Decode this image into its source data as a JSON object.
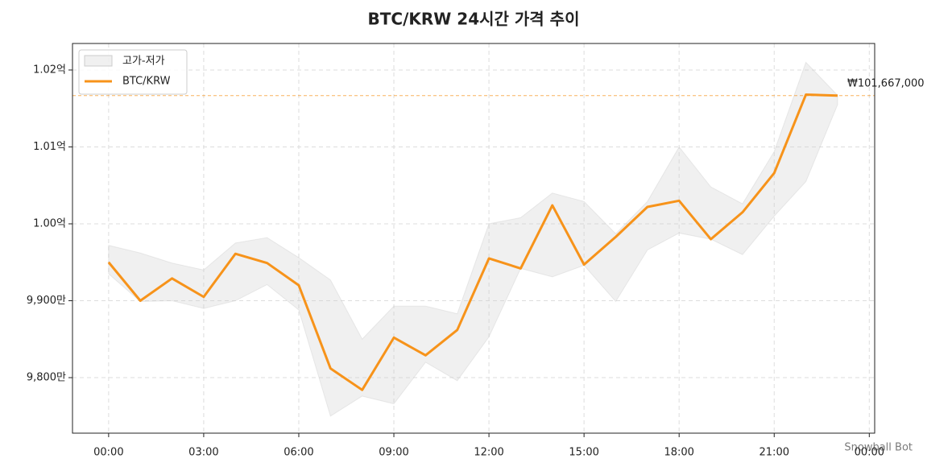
{
  "chart_data": {
    "type": "line",
    "title": "BTC/KRW 24시간 가격 추이",
    "x": [
      0,
      1,
      2,
      3,
      4,
      5,
      6,
      7,
      8,
      9,
      10,
      11,
      12,
      13,
      14,
      15,
      16,
      17,
      18,
      19,
      20,
      21,
      22,
      23
    ],
    "xlim": [
      -1.14,
      24.17
    ],
    "xticks": [
      {
        "value": 0,
        "label": "00:00"
      },
      {
        "value": 3,
        "label": "03:00"
      },
      {
        "value": 6,
        "label": "06:00"
      },
      {
        "value": 9,
        "label": "09:00"
      },
      {
        "value": 12,
        "label": "12:00"
      },
      {
        "value": 15,
        "label": "15:00"
      },
      {
        "value": 18,
        "label": "18:00"
      },
      {
        "value": 21,
        "label": "21:00"
      },
      {
        "value": 24,
        "label": "00:00"
      }
    ],
    "ylim": [
      97278000,
      102345000
    ],
    "yticks": [
      {
        "value": 98000000,
        "label": "9,800만"
      },
      {
        "value": 99000000,
        "label": "9,900만"
      },
      {
        "value": 100000000,
        "label": "1.00억"
      },
      {
        "value": 101000000,
        "label": "1.01억"
      },
      {
        "value": 102000000,
        "label": "1.02억"
      }
    ],
    "grid": true,
    "legend": "upper-left",
    "band": {
      "name": "고가-저가",
      "color": "#cccccc",
      "high": [
        99720000,
        99620000,
        99490000,
        99400000,
        99750000,
        99820000,
        99560000,
        99270000,
        98500000,
        98930000,
        98930000,
        98830000,
        100000000,
        100080000,
        100400000,
        100290000,
        99870000,
        100290000,
        101000000,
        100480000,
        100260000,
        100940000,
        102100000,
        101670000
      ],
      "low": [
        99350000,
        98990000,
        99000000,
        98900000,
        99000000,
        99210000,
        98880000,
        97500000,
        97760000,
        97660000,
        98200000,
        97960000,
        98530000,
        99420000,
        99310000,
        99460000,
        98990000,
        99660000,
        99880000,
        99800000,
        99600000,
        100100000,
        100550000,
        101550000
      ]
    },
    "series": [
      {
        "name": "BTC/KRW",
        "color": "#f7931a",
        "values": [
          99500000,
          99000000,
          99290000,
          99050000,
          99610000,
          99490000,
          99200000,
          98120000,
          97840000,
          98520000,
          98290000,
          98620000,
          99550000,
          99420000,
          100240000,
          99470000,
          99830000,
          100220000,
          100300000,
          99800000,
          100150000,
          100660000,
          101680000,
          101667000
        ],
        "value_labels": [
          null,
          null,
          null,
          null,
          null,
          null,
          null,
          null,
          null,
          null,
          null,
          null,
          null,
          null,
          null,
          null,
          null,
          null,
          null,
          null,
          null,
          null,
          null,
          "₩101,667,000"
        ]
      }
    ],
    "watermark": "Snowball Bot"
  }
}
